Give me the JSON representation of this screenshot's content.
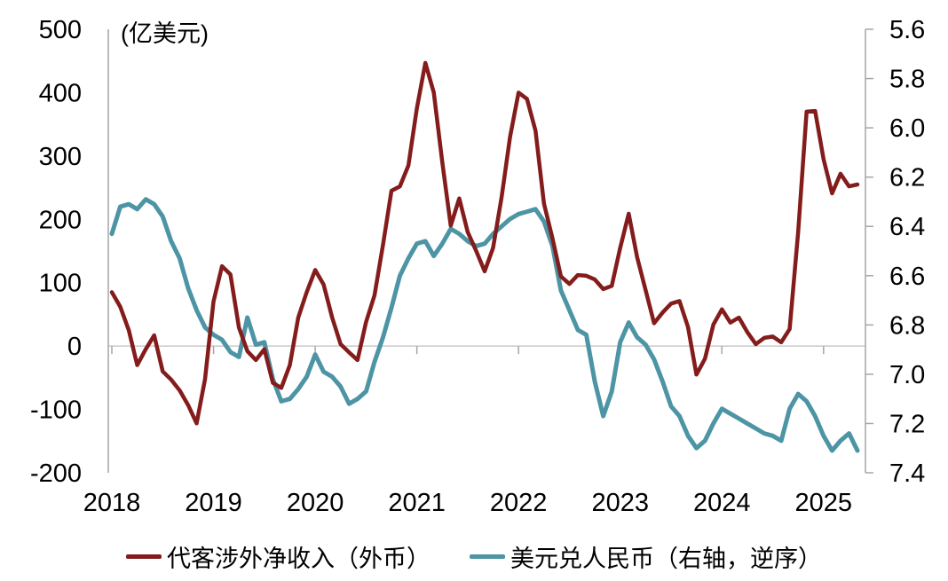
{
  "chart": {
    "unit_label": "(亿美元)",
    "legend": [
      {
        "label": "代客涉外净收入（外币）",
        "color": "#841C1C"
      },
      {
        "label": "美元兑人民币（右轴，逆序）",
        "color": "#4D94A5"
      }
    ]
  },
  "chart_data": {
    "type": "line",
    "title": "",
    "unit_label": "(亿美元)",
    "x_start": "2018-01",
    "x_frequency": "monthly",
    "x_tick_labels": [
      "2018",
      "2019",
      "2020",
      "2021",
      "2022",
      "2023",
      "2024",
      "2025"
    ],
    "left_axis": {
      "label": "亿美元",
      "min": -200,
      "max": 500,
      "tick_step": 100,
      "ticks": [
        500,
        400,
        300,
        200,
        100,
        0,
        -100,
        -200
      ]
    },
    "right_axis": {
      "label": "美元兑人民币",
      "min": 5.6,
      "max": 7.4,
      "tick_step": 0.2,
      "reversed": true,
      "ticks": [
        5.6,
        5.8,
        6.0,
        6.2,
        6.4,
        6.6,
        6.8,
        7.0,
        7.2,
        7.4
      ]
    },
    "grid": "zero-line-only",
    "legend_position": "bottom",
    "series": [
      {
        "name": "美元兑人民币（右轴，逆序）",
        "axis": "right",
        "color": "#4D94A5",
        "values": [
          6.43,
          6.32,
          6.31,
          6.33,
          6.29,
          6.31,
          6.36,
          6.46,
          6.53,
          6.65,
          6.74,
          6.81,
          6.84,
          6.86,
          6.91,
          6.93,
          6.77,
          6.88,
          6.87,
          7.02,
          7.11,
          7.1,
          7.06,
          7.01,
          6.92,
          6.99,
          7.01,
          7.05,
          7.12,
          7.1,
          7.07,
          6.95,
          6.85,
          6.73,
          6.6,
          6.53,
          6.47,
          6.46,
          6.52,
          6.47,
          6.41,
          6.43,
          6.46,
          6.48,
          6.47,
          6.43,
          6.4,
          6.37,
          6.35,
          6.34,
          6.33,
          6.38,
          6.48,
          6.66,
          6.74,
          6.82,
          6.84,
          7.03,
          7.17,
          7.07,
          6.87,
          6.79,
          6.85,
          6.88,
          6.94,
          7.03,
          7.13,
          7.17,
          7.25,
          7.3,
          7.27,
          7.2,
          7.14,
          7.16,
          7.18,
          7.2,
          7.22,
          7.24,
          7.25,
          7.27,
          7.14,
          7.08,
          7.11,
          7.17,
          7.25,
          7.31,
          7.27,
          7.24,
          7.31
        ]
      },
      {
        "name": "代客涉外净收入（外币）",
        "axis": "left",
        "color": "#841C1C",
        "values": [
          85,
          62,
          25,
          -30,
          -5,
          17,
          -40,
          -53,
          -70,
          -93,
          -122,
          -52,
          70,
          126,
          113,
          29,
          -8,
          -22,
          -5,
          -58,
          -66,
          -30,
          45,
          85,
          120,
          97,
          45,
          3,
          -10,
          -22,
          38,
          80,
          160,
          245,
          252,
          285,
          375,
          447,
          400,
          290,
          190,
          233,
          180,
          150,
          118,
          155,
          235,
          330,
          400,
          390,
          340,
          225,
          170,
          110,
          98,
          112,
          111,
          105,
          90,
          95,
          155,
          209,
          140,
          88,
          36,
          53,
          67,
          71,
          30,
          -45,
          -20,
          34,
          58,
          37,
          45,
          22,
          3,
          13,
          15,
          6,
          27,
          180,
          370,
          371,
          295,
          241,
          272,
          252,
          255
        ]
      }
    ]
  }
}
